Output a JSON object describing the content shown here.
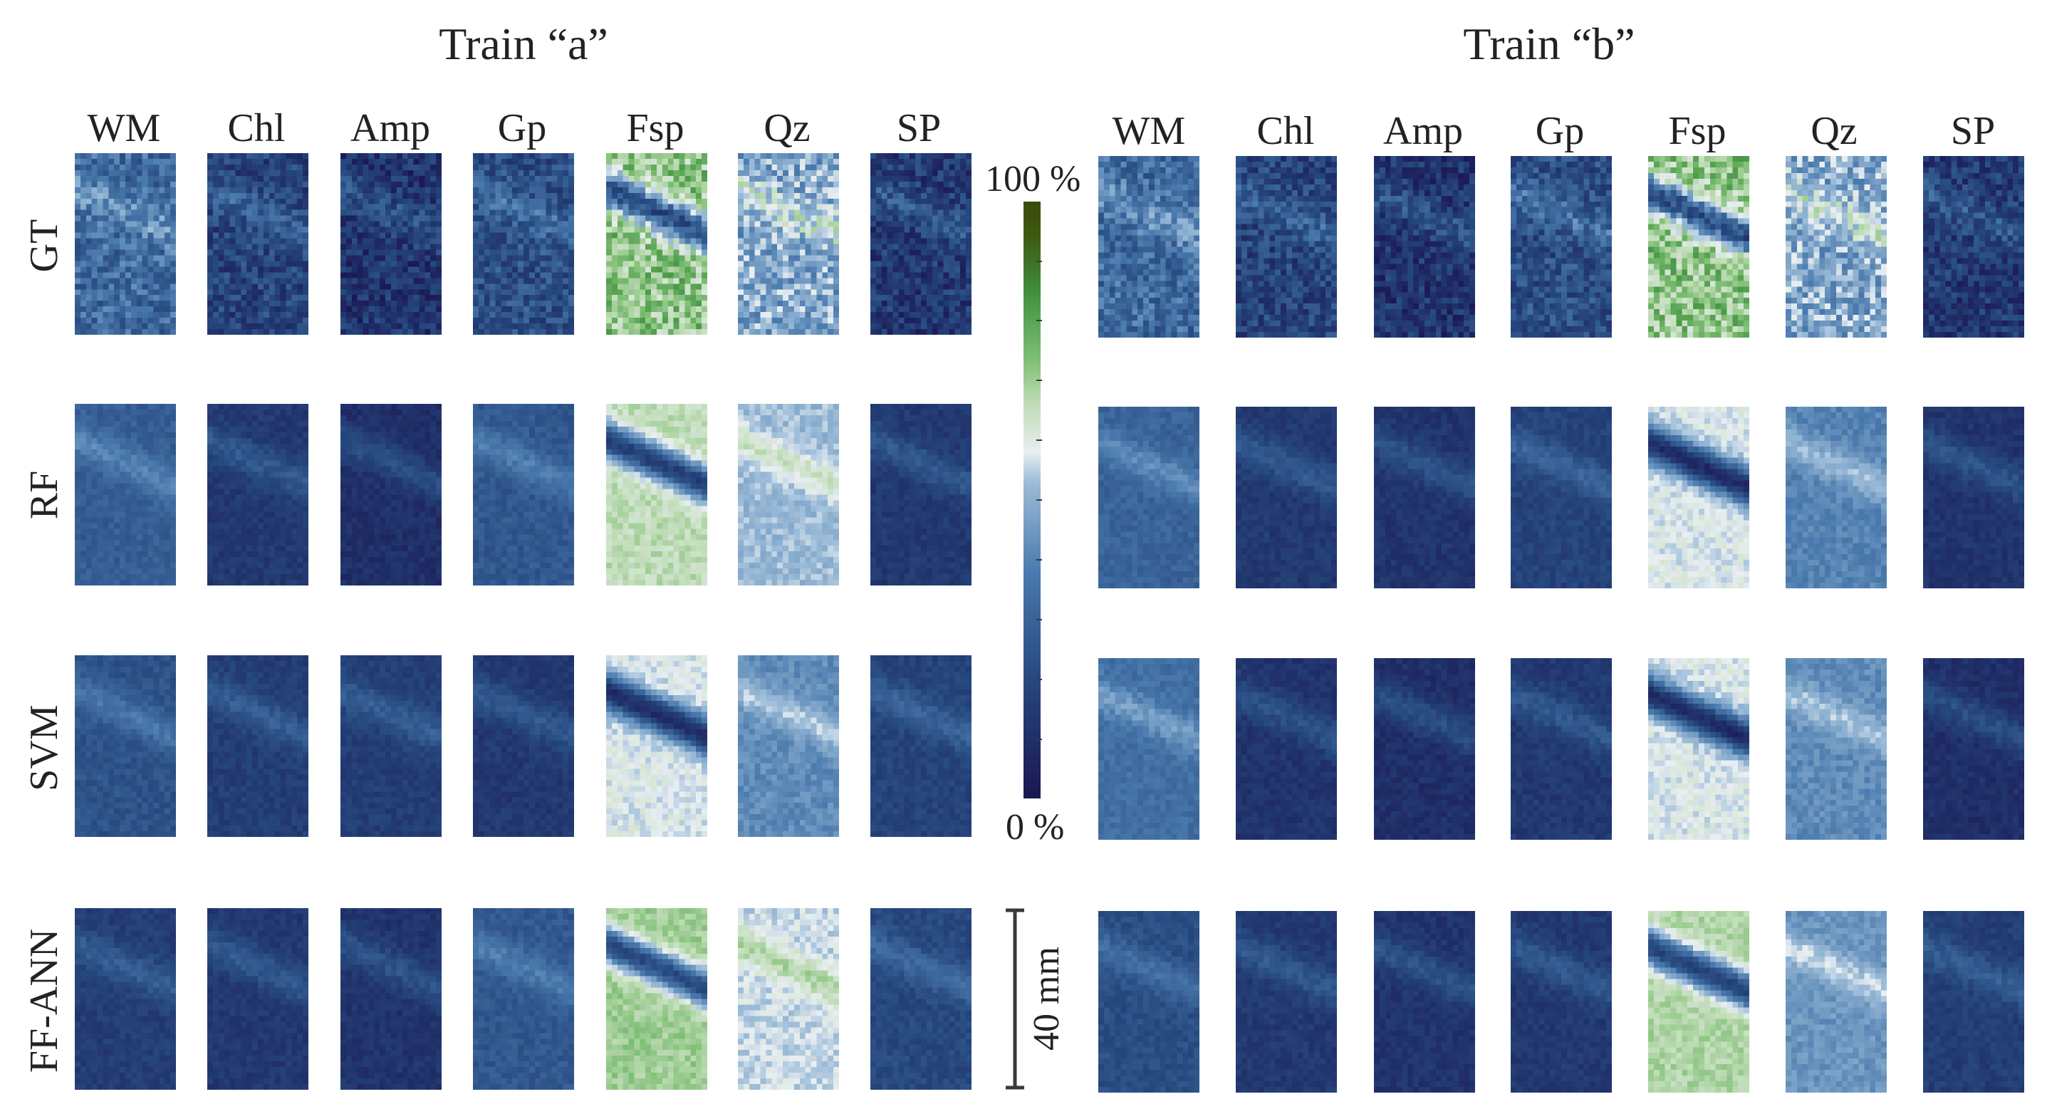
{
  "titles": {
    "left": "Train “a”",
    "right": "Train “b”"
  },
  "columns": [
    "WM",
    "Chl",
    "Amp",
    "Gp",
    "Fsp",
    "Qz",
    "SP"
  ],
  "rows": [
    "GT",
    "RF",
    "SVM",
    "FF-ANN"
  ],
  "colorbar": {
    "max_label": "100 %",
    "min_label": "0 %"
  },
  "scale_label": "40 mm",
  "map_intensity": {
    "a": [
      [
        0.32,
        0.18,
        0.12,
        0.22,
        0.72,
        0.48,
        0.14
      ],
      [
        0.28,
        0.14,
        0.1,
        0.26,
        0.66,
        0.52,
        0.14
      ],
      [
        0.24,
        0.16,
        0.16,
        0.14,
        0.58,
        0.42,
        0.18
      ],
      [
        0.16,
        0.14,
        0.12,
        0.26,
        0.7,
        0.56,
        0.2
      ]
    ],
    "b": [
      [
        0.32,
        0.18,
        0.12,
        0.22,
        0.72,
        0.48,
        0.14
      ],
      [
        0.3,
        0.14,
        0.12,
        0.18,
        0.58,
        0.4,
        0.12
      ],
      [
        0.34,
        0.12,
        0.1,
        0.14,
        0.58,
        0.42,
        0.1
      ],
      [
        0.22,
        0.14,
        0.12,
        0.14,
        0.68,
        0.44,
        0.16
      ]
    ]
  },
  "colors": {
    "dark": "#1a1652",
    "green_top": "#3b4a0a",
    "axis": "#3a3a3a"
  }
}
